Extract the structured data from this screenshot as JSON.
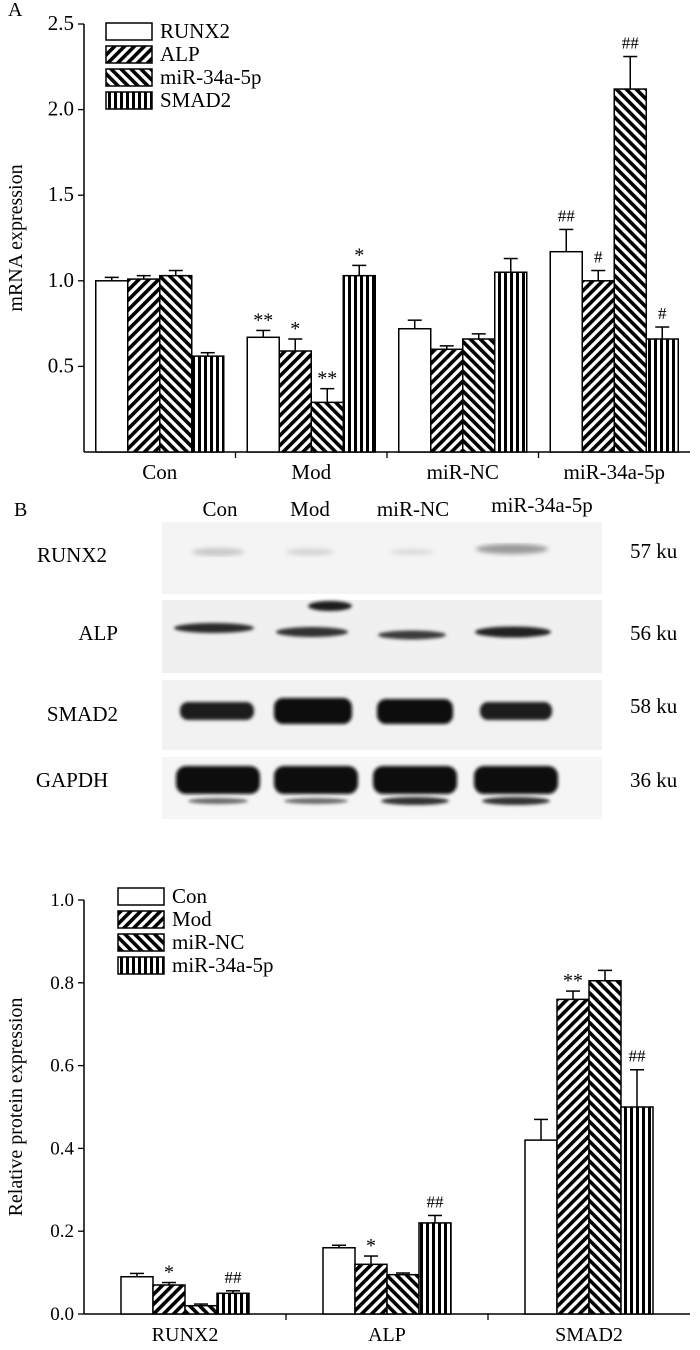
{
  "chart_data": [
    {
      "panel": "A",
      "type": "bar",
      "ylabel": "mRNA expression",
      "xlabel": "",
      "ylim": [
        0,
        2.5
      ],
      "yticks": [
        "0.5",
        "1.0",
        "1.5",
        "2.0",
        "2.5"
      ],
      "ytick_values": [
        0.5,
        1.0,
        1.5,
        2.0,
        2.5
      ],
      "categories": [
        "Con",
        "Mod",
        "miR-NC",
        "miR-34a-5p"
      ],
      "legend_position": "top-left",
      "series": [
        {
          "name": "RUNX2",
          "pattern": "white",
          "values": [
            1.0,
            0.67,
            0.72,
            1.17
          ],
          "errors": [
            0.02,
            0.04,
            0.05,
            0.13
          ],
          "marks": [
            "",
            "**",
            "",
            "##"
          ]
        },
        {
          "name": "ALP",
          "pattern": "diag-right",
          "values": [
            1.01,
            0.59,
            0.6,
            1.0
          ],
          "errors": [
            0.02,
            0.07,
            0.02,
            0.06
          ],
          "marks": [
            "",
            "*",
            "",
            "#"
          ]
        },
        {
          "name": "miR-34a-5p",
          "pattern": "diag-left",
          "values": [
            1.03,
            0.29,
            0.66,
            2.12
          ],
          "errors": [
            0.03,
            0.08,
            0.03,
            0.19
          ],
          "marks": [
            "",
            "**",
            "",
            "##"
          ]
        },
        {
          "name": "SMAD2",
          "pattern": "vertical",
          "values": [
            0.56,
            1.03,
            1.05,
            0.66
          ],
          "errors": [
            0.02,
            0.06,
            0.08,
            0.07
          ],
          "marks": [
            "",
            "*",
            "",
            "#"
          ]
        }
      ]
    },
    {
      "panel": "B",
      "type": "bar",
      "ylabel": "Relative protein expression",
      "xlabel": "",
      "ylim": [
        0,
        1.0
      ],
      "yticks": [
        "0.0",
        "0.2",
        "0.4",
        "0.6",
        "0.8",
        "1.0"
      ],
      "ytick_values": [
        0.0,
        0.2,
        0.4,
        0.6,
        0.8,
        1.0
      ],
      "categories": [
        "RUNX2",
        "ALP",
        "SMAD2"
      ],
      "legend_position": "top-left",
      "series": [
        {
          "name": "Con",
          "pattern": "white",
          "values": [
            0.09,
            0.16,
            0.42
          ],
          "errors": [
            0.008,
            0.006,
            0.05
          ],
          "marks": [
            "",
            "",
            ""
          ]
        },
        {
          "name": "Mod",
          "pattern": "diag-right",
          "values": [
            0.07,
            0.12,
            0.76
          ],
          "errors": [
            0.006,
            0.02,
            0.02
          ],
          "marks": [
            "*",
            "*",
            "**"
          ]
        },
        {
          "name": "miR-NC",
          "pattern": "diag-left",
          "values": [
            0.02,
            0.095,
            0.805
          ],
          "errors": [
            0.004,
            0.004,
            0.025
          ],
          "marks": [
            "",
            "",
            ""
          ]
        },
        {
          "name": "miR-34a-5p",
          "pattern": "vertical",
          "values": [
            0.05,
            0.22,
            0.5
          ],
          "errors": [
            0.006,
            0.018,
            0.09
          ],
          "marks": [
            "##",
            "##",
            "##"
          ]
        }
      ]
    }
  ],
  "western_blot": {
    "panel_label": "B",
    "lanes": [
      "Con",
      "Mod",
      "miR-NC",
      "miR-34a-5p"
    ],
    "rows": [
      {
        "protein": "RUNX2",
        "size": "57 ku"
      },
      {
        "protein": "ALP",
        "size": "56 ku"
      },
      {
        "protein": "SMAD2",
        "size": "58 ku"
      },
      {
        "protein": "GAPDH",
        "size": "36 ku"
      }
    ]
  }
}
